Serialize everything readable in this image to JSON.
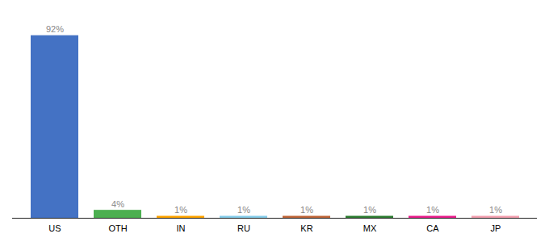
{
  "chart_data": {
    "type": "bar",
    "categories": [
      "US",
      "OTH",
      "IN",
      "RU",
      "KR",
      "MX",
      "CA",
      "JP"
    ],
    "values": [
      92,
      4,
      1,
      1,
      1,
      1,
      1,
      1
    ],
    "value_labels": [
      "92%",
      "4%",
      "1%",
      "1%",
      "1%",
      "1%",
      "1%",
      "1%"
    ],
    "colors": [
      "#4472C4",
      "#4CAF50",
      "#FFA500",
      "#87CEEB",
      "#C0663A",
      "#2E7D32",
      "#E91E8C",
      "#F4A0B0"
    ],
    "ylim": [
      0,
      100
    ],
    "grid": false,
    "data_labels": true,
    "tick_labels": "x"
  }
}
